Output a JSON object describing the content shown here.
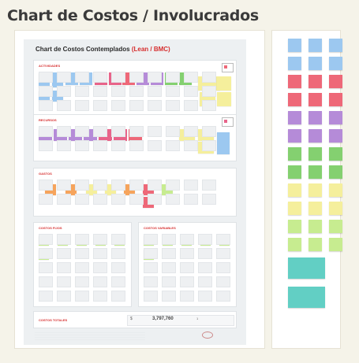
{
  "page_title": "Chart de Costos / Involucrados",
  "colors": {
    "accent_red": "#d62d2d",
    "blue": "#9cc8f0",
    "red": "#ee6878",
    "pink": "#e8648a",
    "purple": "#b58bd8",
    "green": "#84d070",
    "yellow": "#f5ef9c",
    "orange": "#f6a45c",
    "light_green": "#c7ec90",
    "teal": "#62cfc4"
  },
  "chart": {
    "title_main": "Chart de Costos Contemplados",
    "title_accent": "(Lean / BMC)"
  },
  "sections": {
    "actividades": {
      "label": "ACTIVIDADES"
    },
    "recursos": {
      "label": "RECURSOS"
    },
    "gastos": {
      "label": "GASTOS"
    },
    "costos_fijos": {
      "label": "COSTOS FIJOS"
    },
    "costos_variables": {
      "label": "COSTOS VARIABLES"
    },
    "costos_totales": {
      "label": "COSTOS TOTALES"
    }
  },
  "totals": {
    "currency": "$",
    "amount": "3,797,760",
    "one": "1"
  },
  "sticky_notes": {
    "actividades": [
      "blue",
      "blue",
      "blue",
      "blue",
      "pink",
      "pink",
      "red",
      "purple",
      "purple",
      "green",
      "green",
      "yellow",
      "yellow",
      "yellow",
      "yellow",
      "blue",
      "blue"
    ],
    "recursos": [
      "purple",
      "purple",
      "purple",
      "purple",
      "pink",
      "pink",
      "red",
      "yellow",
      "yellow",
      "yellow",
      "blue",
      "blue"
    ],
    "gastos": [
      "orange",
      "orange",
      "yellow",
      "yellow",
      "orange",
      "red",
      "red",
      "lgreen"
    ],
    "costos_fijos": [
      "lgreen",
      "lgreen",
      "lgreen",
      "lgreen",
      "lgreen",
      "lgreen"
    ],
    "costos_variables": [
      "lgreen",
      "lgreen",
      "lgreen",
      "lgreen",
      "lgreen",
      "lgreen"
    ]
  },
  "palette": {
    "rows": [
      [
        "blue",
        "blue",
        "blue"
      ],
      [
        "blue",
        "blue",
        "blue"
      ],
      [
        "red",
        "red",
        "red"
      ],
      [
        "red",
        "red",
        "red"
      ],
      [
        "purple",
        "purple",
        "purple"
      ],
      [
        "purple",
        "purple",
        "purple"
      ],
      [
        "green",
        "green",
        "green"
      ],
      [
        "green",
        "green",
        "green"
      ],
      [
        "yellow",
        "yellow",
        "yellow"
      ],
      [
        "yellow",
        "yellow",
        "yellow"
      ],
      [
        "lgreen",
        "lgreen",
        "lgreen"
      ],
      [
        "lgreen",
        "lgreen",
        "lgreen"
      ]
    ],
    "wide": [
      "teal",
      "teal"
    ]
  }
}
